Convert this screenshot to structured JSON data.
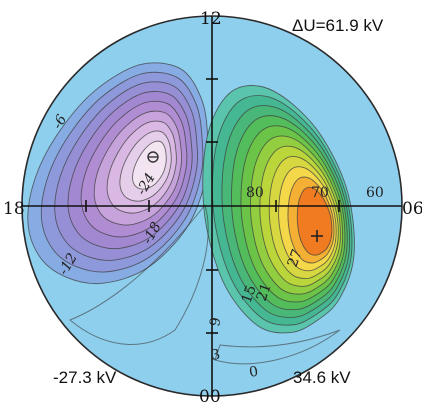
{
  "chart_data": {
    "type": "heatmap",
    "title": "ΔU=61.9 kV",
    "magnetic_local_time_labels": {
      "top": "12",
      "left": "18",
      "right": "06",
      "bottom": "00"
    },
    "colatitude_labels": [
      "80",
      "70",
      "60"
    ],
    "minimum_potential": "-27.3 kV",
    "maximum_potential": "34.6 kV",
    "negative_contour_labels": [
      "-6",
      "-12",
      "-18",
      "-24"
    ],
    "positive_contour_labels": [
      "27",
      "21",
      "15",
      "9",
      "3",
      "0"
    ],
    "negative_cell_levels_kV": [
      -3,
      -6,
      -9,
      -12,
      -15,
      -18,
      -21,
      -24,
      -27
    ],
    "positive_cell_levels_kV": [
      3,
      6,
      9,
      12,
      15,
      18,
      21,
      24,
      27,
      30,
      33
    ],
    "colors": {
      "background": "#8ecfee",
      "negative_extreme": "#f3e6f2",
      "positive_extreme": "#ee5a16"
    }
  }
}
